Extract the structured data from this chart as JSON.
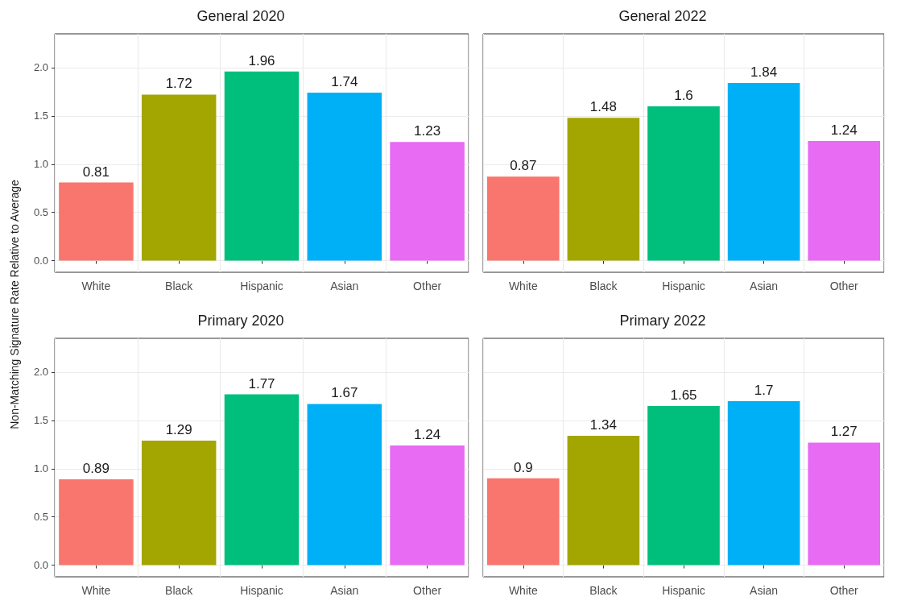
{
  "chart_data": [
    {
      "type": "bar",
      "title": "General 2020",
      "ylabel": "Non-Matching Signature Rate Relative to Average",
      "categories": [
        "White",
        "Black",
        "Hispanic",
        "Asian",
        "Other"
      ],
      "values": [
        0.81,
        1.72,
        1.96,
        1.74,
        1.23
      ],
      "colors": [
        "#f8766d",
        "#a3a500",
        "#00bf7d",
        "#00b0f6",
        "#e76bf3"
      ],
      "ylim": [
        -0.12,
        2.35
      ],
      "yticks": [
        {
          "value": 0,
          "label": "0.0"
        },
        0.5,
        {
          "value": 1,
          "label": "1.0"
        },
        1.5,
        {
          "value": 2,
          "label": "2.0"
        }
      ],
      "grid": true,
      "data_labels": true
    },
    {
      "type": "bar",
      "title": "General 2022",
      "categories": [
        "White",
        "Black",
        "Hispanic",
        "Asian",
        "Other"
      ],
      "values": [
        0.87,
        1.48,
        1.6,
        1.84,
        1.24
      ],
      "colors": [
        "#f8766d",
        "#a3a500",
        "#00bf7d",
        "#00b0f6",
        "#e76bf3"
      ],
      "ylim": [
        -0.12,
        2.35
      ],
      "yticks": [
        0,
        0.5,
        1,
        1.5,
        2
      ],
      "grid": true,
      "data_labels": true,
      "tick_labels": "x"
    },
    {
      "type": "bar",
      "title": "Primary 2020",
      "categories": [
        "White",
        "Black",
        "Hispanic",
        "Asian",
        "Other"
      ],
      "values": [
        0.89,
        1.29,
        1.77,
        1.67,
        1.24
      ],
      "colors": [
        "#f8766d",
        "#a3a500",
        "#00bf7d",
        "#00b0f6",
        "#e76bf3"
      ],
      "ylim": [
        -0.12,
        2.35
      ],
      "yticks": [
        {
          "value": 0,
          "label": "0.0"
        },
        0.5,
        {
          "value": 1,
          "label": "1.0"
        },
        1.5,
        {
          "value": 2,
          "label": "2.0"
        }
      ],
      "grid": true,
      "data_labels": true
    },
    {
      "type": "bar",
      "title": "Primary 2022",
      "categories": [
        "White",
        "Black",
        "Hispanic",
        "Asian",
        "Other"
      ],
      "values": [
        0.9,
        1.34,
        1.65,
        1.7,
        1.27
      ],
      "colors": [
        "#f8766d",
        "#a3a500",
        "#00bf7d",
        "#00b0f6",
        "#e76bf3"
      ],
      "ylim": [
        -0.12,
        2.35
      ],
      "yticks": [
        0,
        0.5,
        1,
        1.5,
        2
      ],
      "grid": true,
      "data_labels": true,
      "tick_labels": "x"
    }
  ]
}
